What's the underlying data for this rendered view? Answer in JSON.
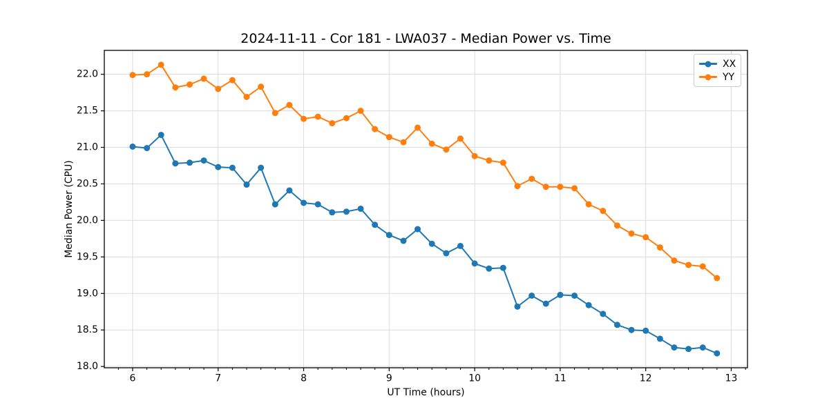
{
  "chart_data": {
    "type": "line",
    "title": "2024-11-11 - Cor 181 - LWA037 - Median Power vs. Time",
    "xlabel": "UT Time (hours)",
    "ylabel": "Median Power (CPU)",
    "xlim": [
      5.669,
      13.19
    ],
    "ylim": [
      17.9825,
      22.3275
    ],
    "x_ticks": [
      6,
      7,
      8,
      9,
      10,
      11,
      12,
      13
    ],
    "y_ticks": [
      18.0,
      18.5,
      19.0,
      19.5,
      20.0,
      20.5,
      21.0,
      21.5,
      22.0
    ],
    "x_minor_step_hours": 0.16667,
    "grid": true,
    "grid_color": "#dcdcdc",
    "spine_color": "#000000",
    "legend_position": "upper-right",
    "x": [
      6.0,
      6.167,
      6.333,
      6.5,
      6.667,
      6.833,
      7.0,
      7.167,
      7.333,
      7.5,
      7.667,
      7.833,
      8.0,
      8.167,
      8.333,
      8.5,
      8.667,
      8.833,
      9.0,
      9.167,
      9.333,
      9.5,
      9.667,
      9.833,
      10.0,
      10.167,
      10.333,
      10.5,
      10.667,
      10.833,
      11.0,
      11.167,
      11.333,
      11.5,
      11.667,
      11.833,
      12.0,
      12.167,
      12.333,
      12.5,
      12.667,
      12.833
    ],
    "series": [
      {
        "name": "XX",
        "color": "#1f77b4",
        "values": [
          21.01,
          20.99,
          21.17,
          20.78,
          20.79,
          20.82,
          20.73,
          20.72,
          20.49,
          20.72,
          20.22,
          20.41,
          20.24,
          20.22,
          20.11,
          20.12,
          20.16,
          19.94,
          19.8,
          19.72,
          19.88,
          19.68,
          19.55,
          19.65,
          19.41,
          19.34,
          19.35,
          18.82,
          18.97,
          18.86,
          18.98,
          18.97,
          18.84,
          18.72,
          18.57,
          18.5,
          18.49,
          18.38,
          18.26,
          18.24,
          18.26,
          18.18
        ]
      },
      {
        "name": "YY",
        "color": "#ff7f0e",
        "values": [
          21.99,
          22.0,
          22.13,
          21.82,
          21.86,
          21.94,
          21.8,
          21.92,
          21.69,
          21.83,
          21.47,
          21.58,
          21.39,
          21.42,
          21.33,
          21.4,
          21.5,
          21.25,
          21.14,
          21.07,
          21.27,
          21.05,
          20.97,
          21.12,
          20.88,
          20.82,
          20.79,
          20.47,
          20.57,
          20.46,
          20.46,
          20.44,
          20.22,
          20.13,
          19.93,
          19.82,
          19.77,
          19.63,
          19.45,
          19.39,
          19.37,
          19.21
        ]
      }
    ]
  }
}
